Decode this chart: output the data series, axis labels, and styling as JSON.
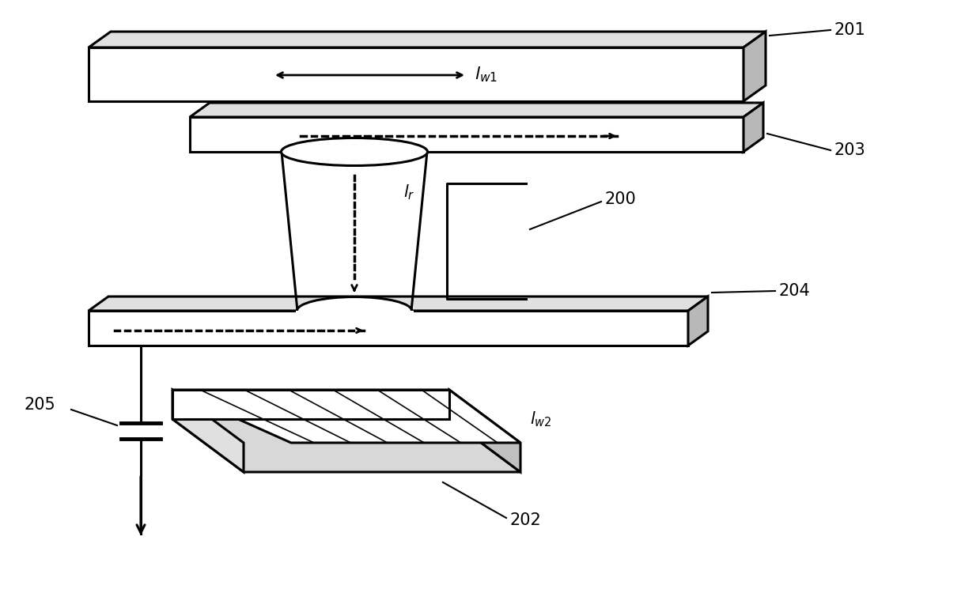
{
  "bg_color": "#ffffff",
  "line_color": "#000000",
  "label_201": "201",
  "label_202": "202",
  "label_203": "203",
  "label_204": "204",
  "label_205": "205",
  "label_200": "200",
  "label_lw1": "$\\mathit{l}_{w1}$",
  "label_lw2": "$\\mathit{l}_{w2}$",
  "label_lr": "$\\mathit{l}_{r}$",
  "figsize": [
    12.39,
    7.5
  ],
  "dpi": 100
}
